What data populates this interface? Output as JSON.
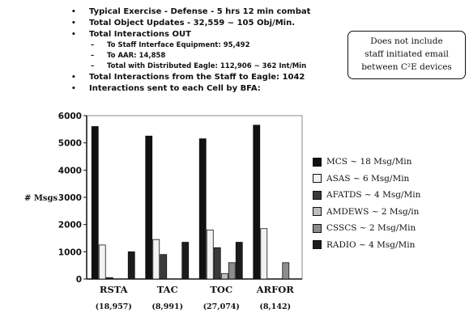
{
  "bullets": [
    {
      "level": 1,
      "text": "Typical Exercise - Defense - 5 hrs 12 min combat"
    },
    {
      "level": 1,
      "text": "Total Object Updates - 32,559 ~ 105 Obj/Min."
    },
    {
      "level": 1,
      "text": "Total Interactions OUT"
    },
    {
      "level": 2,
      "text": "To Staff Interface Equipment: 95,492"
    },
    {
      "level": 2,
      "text": "To AAR: 14,858"
    },
    {
      "level": 2,
      "text": "Total with Distributed Eagle: 112,906 ~ 362 Int/Min"
    },
    {
      "level": 1,
      "text": "Total Interactions from the Staff to Eagle: 1042"
    },
    {
      "level": 1,
      "text": "Interactions sent to each Cell by BFA:"
    }
  ],
  "note": {
    "lines": [
      "Does not include",
      "staff initiated email",
      "between C²E devices"
    ]
  },
  "chart_data": {
    "type": "bar",
    "ylabel": "# Msgs",
    "ylim": [
      0,
      6000
    ],
    "yticks": [
      0,
      1000,
      2000,
      3000,
      4000,
      5000,
      6000
    ],
    "categories": [
      "RSTA",
      "TAC",
      "TOC",
      "ARFOR"
    ],
    "category_totals": [
      "(18,957)",
      "(8,991)",
      "(27,074)",
      "(8,142)"
    ],
    "series": [
      {
        "name": "MCS ~ 18 Msg/Min",
        "color": "#111111",
        "values": [
          5600,
          5250,
          5150,
          5650
        ]
      },
      {
        "name": "ASAS ~ 6 Msg/Min",
        "color": "#f2f2f2",
        "values": [
          1250,
          1450,
          1800,
          1850
        ]
      },
      {
        "name": "AFATDS ~ 4 Msg/Min",
        "color": "#3a3a3a",
        "values": [
          50,
          900,
          1150,
          0
        ]
      },
      {
        "name": "AMDEWS ~ 2 Msg/in",
        "color": "#bdbdbd",
        "values": [
          0,
          0,
          200,
          0
        ]
      },
      {
        "name": "CSSCS ~ 2 Msg/Min",
        "color": "#8c8c8c",
        "values": [
          0,
          0,
          600,
          600
        ]
      },
      {
        "name": "RADIO ~ 4 Msg/Min",
        "color": "#1c1c1c",
        "values": [
          1000,
          1350,
          1350,
          0
        ]
      }
    ],
    "grid": false,
    "legend": "right"
  }
}
